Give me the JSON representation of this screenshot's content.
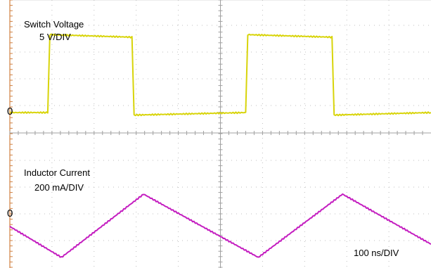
{
  "chart_data": {
    "type": "line",
    "grid": true,
    "colors": {
      "switch_voltage": "#d8d40a",
      "inductor_current": "#c41ec0",
      "grid": "#bfbfbf",
      "frame": "#d08040"
    },
    "time_scale": "100 ns/DIV",
    "x_divisions": 10,
    "x_range_divisions": [
      0,
      10
    ],
    "series": [
      {
        "name": "Switch Voltage",
        "scale": "5 V/DIV",
        "zero_label": "0",
        "x_div": [
          0,
          1.8,
          1.9,
          5.8,
          5.9,
          11.2,
          11.3,
          15.3,
          15.4,
          20.0
        ],
        "y_div": [
          0,
          0,
          3.1,
          3.0,
          -0.1,
          0,
          3.1,
          3.0,
          -0.1,
          0
        ]
      },
      {
        "name": "Inductor Current",
        "scale": "200 mA/DIV",
        "zero_label": "0",
        "x_div": [
          0,
          2.45,
          6.35,
          11.8,
          15.8,
          20.0
        ],
        "y_div": [
          0,
          -1.05,
          1.1,
          -1.05,
          1.1,
          -0.6
        ]
      }
    ]
  }
}
